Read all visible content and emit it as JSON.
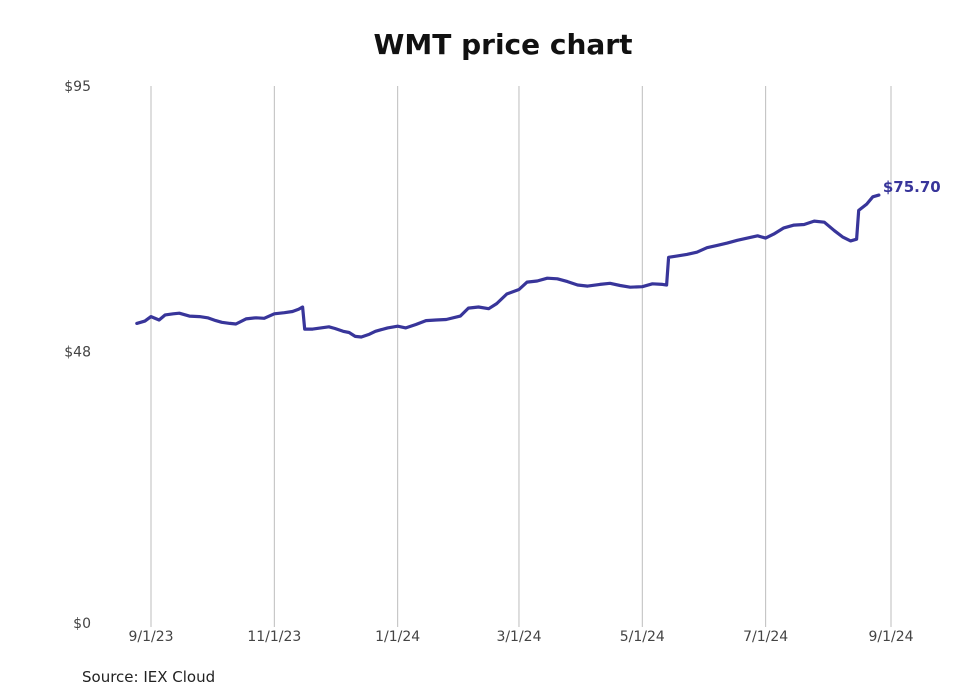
{
  "title": "WMT price chart",
  "source": "Source: IEX Cloud",
  "colors": {
    "line": "#38359a",
    "grid": "#bdbdbd"
  },
  "chart_data": {
    "type": "line",
    "title": "WMT price chart",
    "ylim": [
      0,
      95
    ],
    "y_ticks": [
      {
        "value": 95,
        "label": "$95"
      },
      {
        "value": 48,
        "label": "$48"
      },
      {
        "value": 0,
        "label": "$0"
      }
    ],
    "x_ticks": [
      {
        "date": "2023-09-01",
        "label": "9/1/23"
      },
      {
        "date": "2023-11-01",
        "label": "11/1/23"
      },
      {
        "date": "2024-01-01",
        "label": "1/1/24"
      },
      {
        "date": "2024-03-01",
        "label": "3/1/24"
      },
      {
        "date": "2024-05-01",
        "label": "5/1/24"
      },
      {
        "date": "2024-07-01",
        "label": "7/1/24"
      },
      {
        "date": "2024-09-01",
        "label": "9/1/24"
      }
    ],
    "x_grid": true,
    "y_grid": false,
    "series": [
      {
        "points": [
          [
            "2023-08-25",
            53.0
          ],
          [
            "2023-08-29",
            53.4
          ],
          [
            "2023-09-01",
            54.2
          ],
          [
            "2023-09-05",
            53.6
          ],
          [
            "2023-09-08",
            54.5
          ],
          [
            "2023-09-12",
            54.7
          ],
          [
            "2023-09-15",
            54.8
          ],
          [
            "2023-09-20",
            54.3
          ],
          [
            "2023-09-25",
            54.2
          ],
          [
            "2023-09-29",
            54.0
          ],
          [
            "2023-10-03",
            53.5
          ],
          [
            "2023-10-06",
            53.2
          ],
          [
            "2023-10-10",
            53.0
          ],
          [
            "2023-10-13",
            52.9
          ],
          [
            "2023-10-18",
            53.8
          ],
          [
            "2023-10-23",
            54.0
          ],
          [
            "2023-10-27",
            53.9
          ],
          [
            "2023-11-01",
            54.7
          ],
          [
            "2023-11-06",
            54.9
          ],
          [
            "2023-11-10",
            55.1
          ],
          [
            "2023-11-13",
            55.5
          ],
          [
            "2023-11-15",
            55.9
          ],
          [
            "2023-11-16",
            52.0
          ],
          [
            "2023-11-20",
            52.0
          ],
          [
            "2023-11-24",
            52.2
          ],
          [
            "2023-11-28",
            52.4
          ],
          [
            "2023-12-01",
            52.1
          ],
          [
            "2023-12-05",
            51.6
          ],
          [
            "2023-12-08",
            51.4
          ],
          [
            "2023-12-11",
            50.7
          ],
          [
            "2023-12-14",
            50.6
          ],
          [
            "2023-12-18",
            51.1
          ],
          [
            "2023-12-21",
            51.6
          ],
          [
            "2023-12-27",
            52.2
          ],
          [
            "2024-01-01",
            52.5
          ],
          [
            "2024-01-05",
            52.2
          ],
          [
            "2024-01-10",
            52.8
          ],
          [
            "2024-01-15",
            53.5
          ],
          [
            "2024-01-20",
            53.6
          ],
          [
            "2024-01-25",
            53.7
          ],
          [
            "2024-02-01",
            54.3
          ],
          [
            "2024-02-05",
            55.7
          ],
          [
            "2024-02-10",
            55.9
          ],
          [
            "2024-02-15",
            55.6
          ],
          [
            "2024-02-19",
            56.5
          ],
          [
            "2024-02-24",
            58.2
          ],
          [
            "2024-03-01",
            59.0
          ],
          [
            "2024-03-05",
            60.3
          ],
          [
            "2024-03-10",
            60.5
          ],
          [
            "2024-03-15",
            61.0
          ],
          [
            "2024-03-20",
            60.9
          ],
          [
            "2024-03-25",
            60.4
          ],
          [
            "2024-03-30",
            59.8
          ],
          [
            "2024-04-04",
            59.6
          ],
          [
            "2024-04-10",
            59.9
          ],
          [
            "2024-04-15",
            60.1
          ],
          [
            "2024-04-20",
            59.7
          ],
          [
            "2024-04-25",
            59.4
          ],
          [
            "2024-05-01",
            59.5
          ],
          [
            "2024-05-06",
            60.0
          ],
          [
            "2024-05-11",
            59.9
          ],
          [
            "2024-05-13",
            59.8
          ],
          [
            "2024-05-14",
            64.7
          ],
          [
            "2024-05-18",
            64.9
          ],
          [
            "2024-05-23",
            65.2
          ],
          [
            "2024-05-28",
            65.6
          ],
          [
            "2024-06-02",
            66.4
          ],
          [
            "2024-06-07",
            66.8
          ],
          [
            "2024-06-12",
            67.2
          ],
          [
            "2024-06-17",
            67.7
          ],
          [
            "2024-06-22",
            68.1
          ],
          [
            "2024-06-27",
            68.5
          ],
          [
            "2024-07-01",
            68.1
          ],
          [
            "2024-07-05",
            68.8
          ],
          [
            "2024-07-10",
            69.9
          ],
          [
            "2024-07-15",
            70.4
          ],
          [
            "2024-07-20",
            70.5
          ],
          [
            "2024-07-25",
            71.1
          ],
          [
            "2024-07-30",
            70.9
          ],
          [
            "2024-08-04",
            69.4
          ],
          [
            "2024-08-08",
            68.3
          ],
          [
            "2024-08-12",
            67.6
          ],
          [
            "2024-08-15",
            67.9
          ],
          [
            "2024-08-16",
            73.0
          ],
          [
            "2024-08-20",
            74.1
          ],
          [
            "2024-08-23",
            75.4
          ],
          [
            "2024-08-26",
            75.7
          ]
        ]
      }
    ],
    "last_value_label": "$75.70"
  }
}
